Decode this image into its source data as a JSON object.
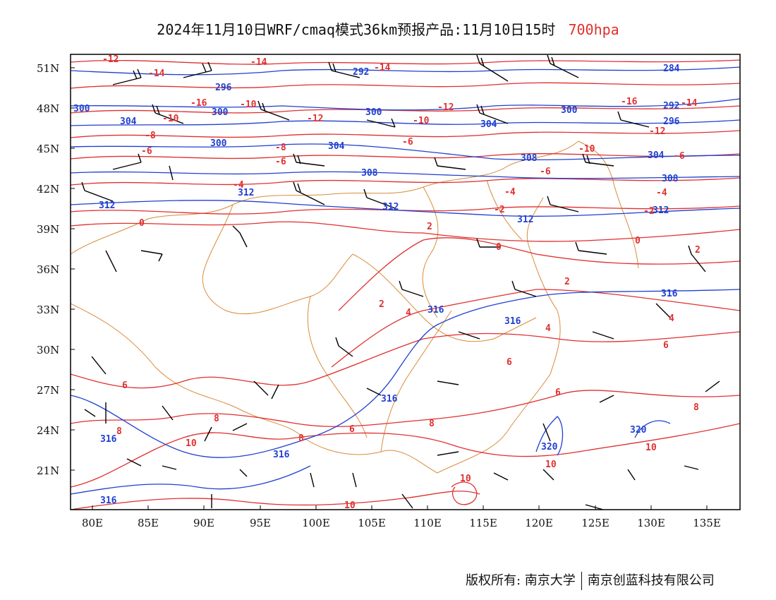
{
  "title": {
    "main": "2024年11月10日WRF/cmaq模式36km预报产品:11月10日15时",
    "level": "700hpa"
  },
  "colors": {
    "temperature": "#e03030",
    "geopotential": "#2040d0",
    "borders": "#d98b3a",
    "wind": "#000000"
  },
  "map": {
    "lon_range": [
      78,
      138
    ],
    "lat_range": [
      18.5,
      52.5
    ],
    "lon_ticks": [
      "80E",
      "85E",
      "90E",
      "95E",
      "100E",
      "105E",
      "110E",
      "115E",
      "120E",
      "125E",
      "130E",
      "135E"
    ],
    "lat_ticks": [
      "51N",
      "48N",
      "45N",
      "42N",
      "39N",
      "36N",
      "33N",
      "30N",
      "27N",
      "24N",
      "21N"
    ],
    "temperature_labels": [
      "-12",
      "-14",
      "-16",
      "-10",
      "-8",
      "-6",
      "-4",
      "-2",
      "0",
      "2",
      "4",
      "6",
      "8",
      "10"
    ],
    "height_labels": [
      "284",
      "292",
      "296",
      "300",
      "304",
      "308",
      "312",
      "316",
      "320"
    ]
  },
  "footer": {
    "copyright": "版权所有: 南京大学",
    "company": "南京创蓝科技有限公司"
  }
}
